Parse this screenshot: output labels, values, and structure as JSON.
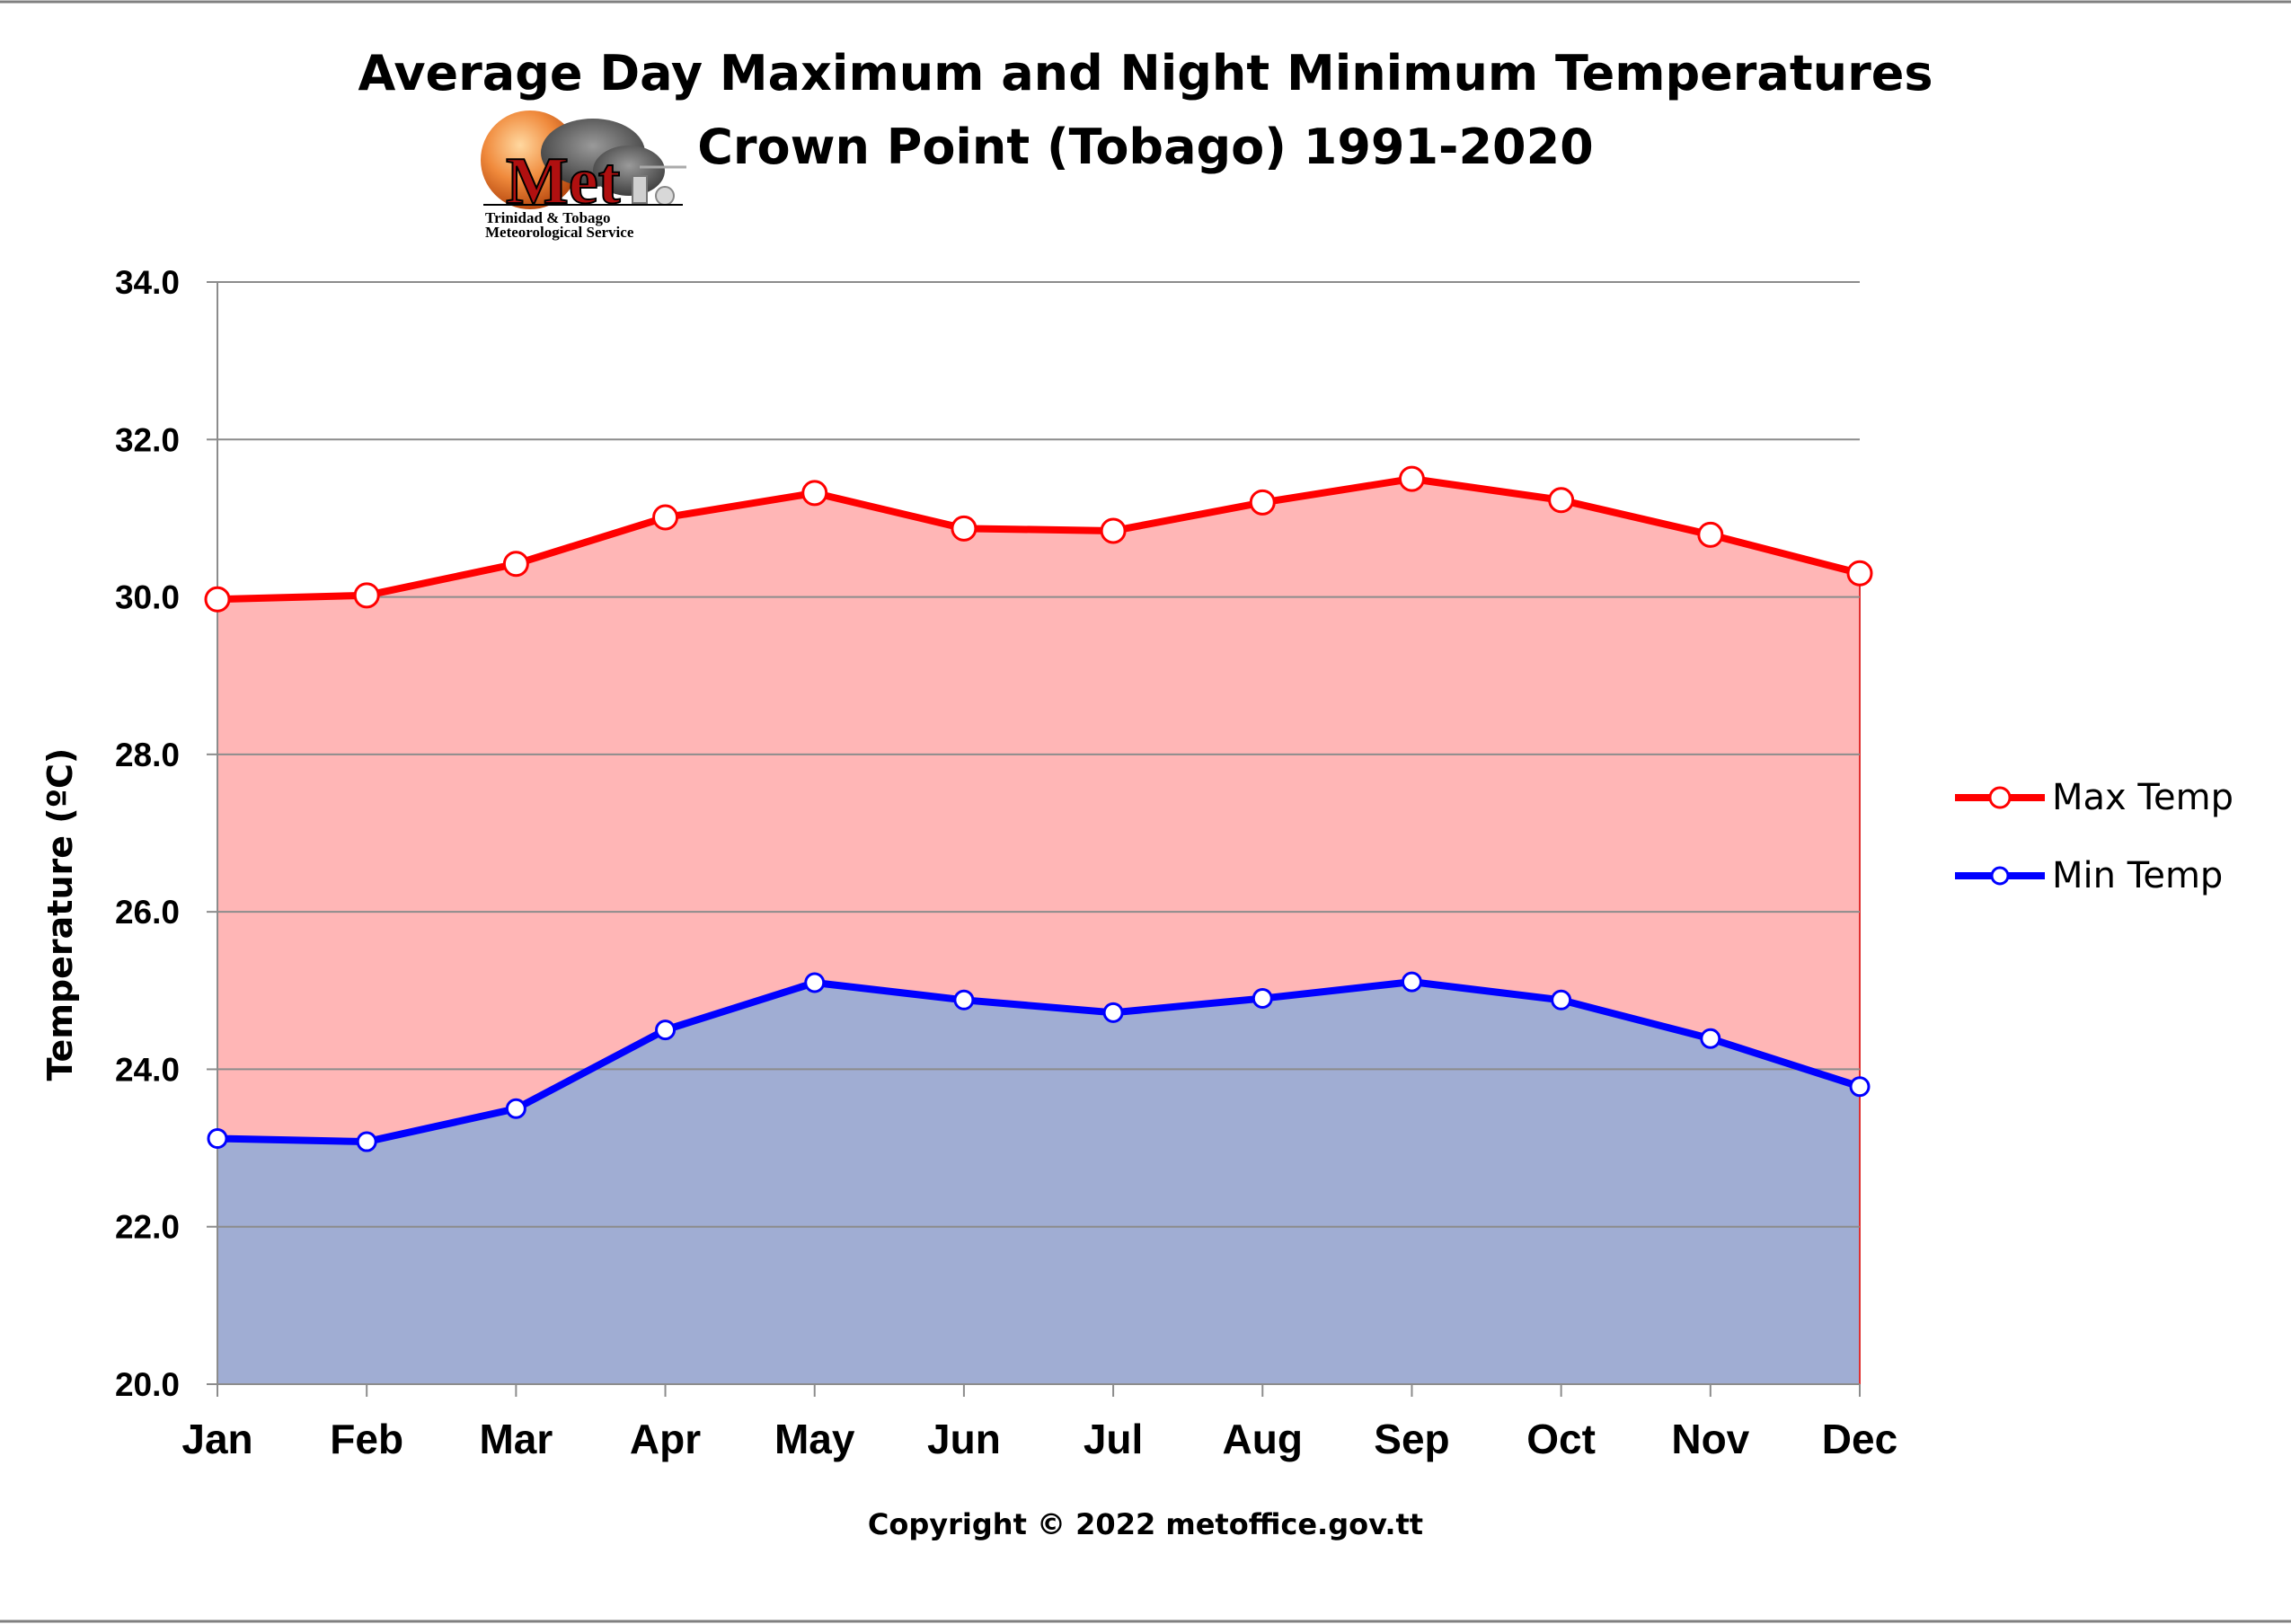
{
  "page": {
    "title_line1": "Average Day Maximum and Night Minimum Temperatures",
    "title_line2": "Crown Point  (Tobago) 1991-2020",
    "copyright": "Copyright  © 2022 metoffice.gov.tt"
  },
  "logo": {
    "wordmark": "Met",
    "line1": "Trinidad & Tobago",
    "line2": "Meteorological Service"
  },
  "chart_data": {
    "type": "area",
    "title": "Average Day Maximum and Night Minimum Temperatures Crown Point  (Tobago) 1991-2020",
    "xlabel": "",
    "ylabel": "Temperature (ºC)",
    "ylim": [
      20,
      34
    ],
    "ytick_step": 2,
    "ytick_labels": [
      "20.0",
      "22.0",
      "24.0",
      "26.0",
      "28.0",
      "30.0",
      "32.0",
      "34.0"
    ],
    "categories": [
      "Jan",
      "Feb",
      "Mar",
      "Apr",
      "May",
      "Jun",
      "Jul",
      "Aug",
      "Sep",
      "Oct",
      "Nov",
      "Dec"
    ],
    "grid": true,
    "legend_position": "right",
    "series": [
      {
        "name": "Max Temp",
        "color": "#ff0000",
        "fill": "#ffb6b6",
        "values": [
          29.97,
          30.02,
          30.42,
          31.01,
          31.32,
          30.87,
          30.84,
          31.2,
          31.5,
          31.23,
          30.79,
          30.3
        ]
      },
      {
        "name": "Min Temp",
        "color": "#0000ff",
        "fill": "#a0add3",
        "values": [
          23.12,
          23.08,
          23.5,
          24.5,
          25.1,
          24.88,
          24.72,
          24.9,
          25.11,
          24.88,
          24.39,
          23.78
        ]
      }
    ]
  }
}
